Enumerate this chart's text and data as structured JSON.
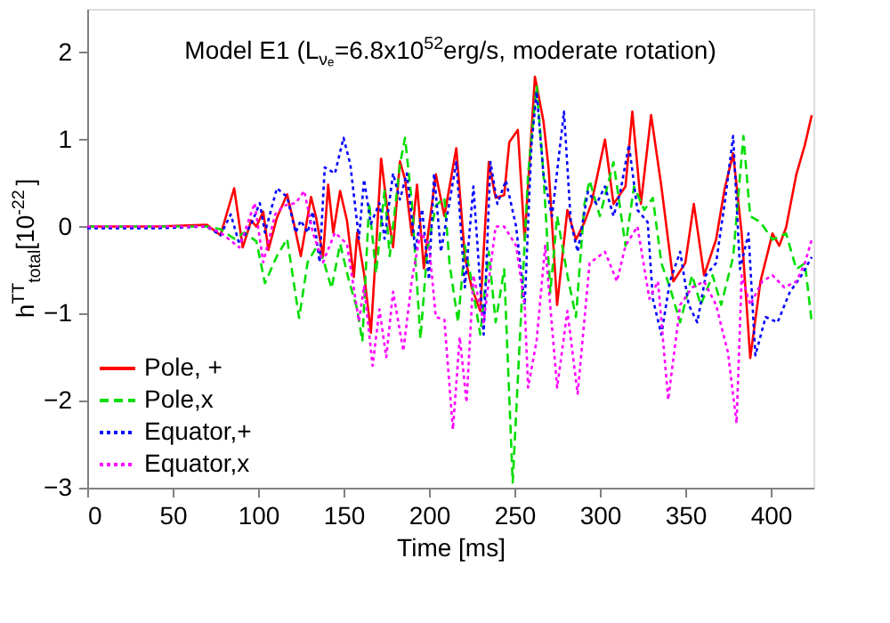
{
  "chart_data": {
    "type": "line",
    "title": "Model E1 (L$_{νₑ}$=6.8x10$^{52}$erg/s, moderate rotation)",
    "xlabel": "Time [ms]",
    "ylabel": "h$^{TT}$$_{total}$[10$^{-22}$]",
    "xlim": [
      0,
      425
    ],
    "xticks": [
      0,
      50,
      100,
      150,
      200,
      250,
      300,
      350,
      400
    ],
    "ylim": [
      -3,
      2.5
    ],
    "yticks": [
      -3,
      -2,
      -1,
      0,
      1,
      2
    ],
    "grid": false,
    "legend": "bottom left",
    "marker": "none",
    "series": [
      {
        "name": "Pole, +",
        "color": "#ff0000",
        "line_style": "solid",
        "x": [
          0,
          40,
          70,
          78,
          86,
          91,
          96,
          99,
          103,
          106,
          111,
          117,
          121,
          125,
          131,
          134,
          138,
          141,
          144,
          148,
          152,
          156,
          158,
          162,
          166,
          169,
          172,
          176,
          179,
          183,
          186,
          190,
          193,
          197,
          200,
          204,
          209,
          216,
          221,
          225,
          230,
          235,
          239,
          244,
          247,
          252,
          256,
          262,
          267,
          270,
          275,
          281,
          286,
          291,
          295,
          303,
          308,
          315,
          319,
          324,
          330,
          336,
          343,
          350,
          355,
          361,
          368,
          373,
          378,
          383,
          388,
          394,
          401,
          405,
          409,
          415,
          420,
          424
        ],
        "values": [
          0,
          0,
          0.02,
          -0.1,
          0.44,
          -0.24,
          0.07,
          0,
          0.17,
          -0.27,
          0.1,
          0.37,
          0.03,
          -0.34,
          0.34,
          0.1,
          -0.34,
          0.48,
          -0.07,
          0.41,
          0.07,
          -0.58,
          -0.07,
          -0.54,
          -1.22,
          -0.27,
          0.78,
          0.14,
          -0.24,
          0.75,
          0.54,
          -0.1,
          0.48,
          -0.48,
          0,
          0.6,
          0.12,
          0.9,
          -0.35,
          -0.7,
          -0.97,
          0.74,
          0.33,
          0.36,
          0.97,
          1.11,
          -0.15,
          1.72,
          1.21,
          0.67,
          -0.9,
          0.19,
          -0.15,
          0.05,
          0.26,
          1.0,
          0.26,
          0.46,
          1.32,
          0.26,
          1.28,
          0.46,
          -0.63,
          -0.42,
          0.26,
          -0.56,
          -0.15,
          0.43,
          0.84,
          -0.08,
          -1.51,
          -0.63,
          -0.08,
          -0.22,
          -0.01,
          0.6,
          0.94,
          1.28
        ]
      },
      {
        "name": "Pole,x",
        "color": "#00dd00",
        "line_style": "dashed",
        "x": [
          0,
          40,
          70,
          78,
          86,
          92,
          99,
          104,
          111,
          117,
          124,
          129,
          134,
          138,
          143,
          148,
          153,
          158,
          161,
          165,
          169,
          174,
          177,
          183,
          186,
          190,
          195,
          199,
          204,
          209,
          212,
          217,
          221,
          225,
          230,
          235,
          239,
          244,
          249,
          254,
          258,
          263,
          267,
          271,
          275,
          281,
          286,
          291,
          294,
          300,
          308,
          315,
          320,
          326,
          331,
          336,
          341,
          347,
          354,
          359,
          366,
          371,
          378,
          384,
          388,
          394,
          401,
          409,
          415,
          420,
          424
        ],
        "values": [
          0,
          0,
          0,
          -0.03,
          -0.14,
          -0.07,
          -0.17,
          -0.65,
          -0.34,
          -0.14,
          -1.05,
          -0.41,
          -0.24,
          -0.37,
          -0.71,
          -0.2,
          -0.61,
          -0.95,
          -1.32,
          0.27,
          -0.54,
          0.41,
          -0.34,
          0.71,
          1.02,
          0.27,
          -1.29,
          -0.27,
          0.24,
          0.33,
          -0.42,
          -1.1,
          -0.22,
          -0.63,
          -1.24,
          -0.29,
          -1.1,
          -0.49,
          -2.94,
          -0.97,
          0.6,
          1.62,
          0.6,
          -0.76,
          0.12,
          -0.56,
          -1.04,
          0.26,
          0.53,
          0.12,
          0.74,
          -0.22,
          0.46,
          0.19,
          0.33,
          -0.42,
          -0.7,
          -1.1,
          -0.56,
          -0.9,
          -0.56,
          -0.9,
          -0.35,
          1.04,
          0.12,
          0.05,
          -0.15,
          -0.08,
          -0.49,
          -0.42,
          -1.1
        ]
      },
      {
        "name": "Equator,+",
        "color": "#0000ff",
        "line_style": "dotted",
        "x": [
          0,
          40,
          70,
          78,
          84,
          89,
          96,
          101,
          104,
          111,
          117,
          122,
          125,
          129,
          132,
          136,
          139,
          145,
          150,
          154,
          159,
          162,
          166,
          171,
          174,
          179,
          183,
          187,
          192,
          196,
          200,
          203,
          207,
          216,
          221,
          226,
          232,
          236,
          240,
          245,
          251,
          256,
          260,
          263,
          267,
          272,
          279,
          283,
          287,
          293,
          298,
          303,
          308,
          312,
          317,
          322,
          328,
          331,
          336,
          341,
          347,
          352,
          357,
          362,
          368,
          373,
          378,
          382,
          387,
          391,
          397,
          404,
          411,
          418,
          424
        ],
        "values": [
          -0.02,
          -0.02,
          0,
          -0.1,
          0.14,
          -0.2,
          0.03,
          0.27,
          -0.07,
          0.44,
          0.34,
          -0.07,
          0.07,
          -0.07,
          0.17,
          -0.41,
          0.68,
          0.61,
          1.02,
          0.71,
          -0.14,
          0.54,
          0.03,
          0.27,
          -0.14,
          0.61,
          0.31,
          0.61,
          -0.27,
          0.2,
          -0.61,
          0.61,
          -0.29,
          0.74,
          -0.7,
          0.46,
          -1.24,
          0.74,
          0.26,
          0.53,
          0,
          -0.9,
          0.94,
          1.55,
          0.6,
          0.12,
          1.32,
          0.05,
          -0.29,
          0.4,
          0.26,
          0.46,
          0.12,
          0.4,
          0.94,
          0.19,
          0.05,
          -0.83,
          -1.24,
          -0.63,
          -0.29,
          -0.9,
          -1.1,
          -0.56,
          -0.42,
          0.26,
          1.04,
          -0.49,
          -0.08,
          -1.48,
          -1.04,
          -1.1,
          -0.76,
          -0.56,
          -0.35
        ]
      },
      {
        "name": "Equator,x",
        "color": "#ff00ff",
        "line_style": "dotted",
        "x": [
          0,
          40,
          70,
          78,
          89,
          98,
          103,
          110,
          115,
          122,
          127,
          132,
          138,
          145,
          152,
          159,
          162,
          167,
          171,
          175,
          179,
          185,
          190,
          195,
          200,
          204,
          209,
          214,
          218,
          222,
          226,
          232,
          239,
          244,
          251,
          256,
          258,
          263,
          268,
          275,
          281,
          287,
          294,
          303,
          310,
          315,
          322,
          329,
          334,
          340,
          347,
          354,
          361,
          368,
          375,
          380,
          383,
          388,
          395,
          401,
          408,
          415,
          420,
          424
        ],
        "values": [
          0,
          0,
          0,
          -0.07,
          -0.24,
          0.27,
          -0.41,
          0.14,
          0.24,
          0.27,
          0.41,
          -0.07,
          -0.41,
          -0.07,
          -0.2,
          -1.09,
          -0.68,
          -1.6,
          -0.95,
          -1.5,
          -0.75,
          -1.43,
          -0.61,
          -0.07,
          -0.2,
          -1.04,
          -1.07,
          -2.33,
          -1.27,
          -2.02,
          -0.56,
          -1.1,
          0,
          0,
          -0.22,
          -0.9,
          -1.85,
          -1.31,
          -0.22,
          -1.85,
          -0.97,
          -1.92,
          -0.42,
          -0.29,
          -0.63,
          -0.22,
          0,
          -0.83,
          -0.63,
          -1.99,
          -0.9,
          -0.7,
          -0.63,
          -0.9,
          -1.45,
          -2.26,
          -0.56,
          -0.9,
          -0.63,
          -0.56,
          -0.7,
          -0.63,
          -0.42,
          -0.15
        ]
      }
    ]
  }
}
